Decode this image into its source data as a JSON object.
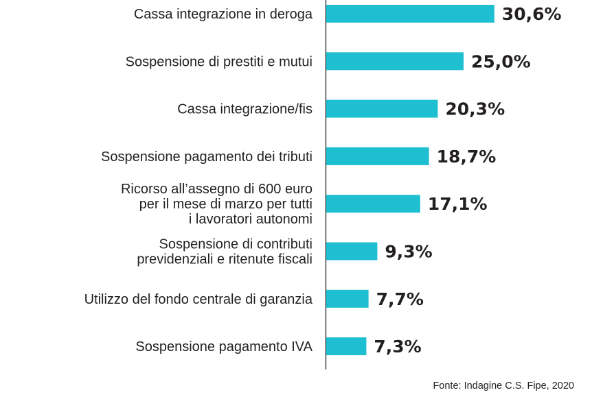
{
  "chart_data": {
    "type": "bar",
    "orientation": "horizontal",
    "categories": [
      [
        "Cassa integrazione in deroga"
      ],
      [
        "Sospensione di prestiti e mutui"
      ],
      [
        "Cassa integrazione/fis"
      ],
      [
        "Sospensione pagamento dei tributi"
      ],
      [
        "Ricorso all’assegno di 600 euro",
        "per il mese di marzo per tutti",
        "i lavoratori autonomi"
      ],
      [
        "Sospensione di contributi",
        "previdenziali e ritenute fiscali"
      ],
      [
        "Utilizzo del fondo centrale di garanzia"
      ],
      [
        "Sospensione pagamento IVA"
      ]
    ],
    "values": [
      30.6,
      25.0,
      20.3,
      18.7,
      17.1,
      9.3,
      7.7,
      7.3
    ],
    "value_labels": [
      "30,6%",
      "25,0%",
      "20,3%",
      "18,7%",
      "17,1%",
      "9,3%",
      "7,7%",
      "7,3%"
    ],
    "source": "Fonte: Indagine C.S. Fipe, 2020",
    "bar_color": "#1ebfd1",
    "text_color": "#231f20",
    "grid": false,
    "xlim": [
      0,
      30.6
    ]
  }
}
